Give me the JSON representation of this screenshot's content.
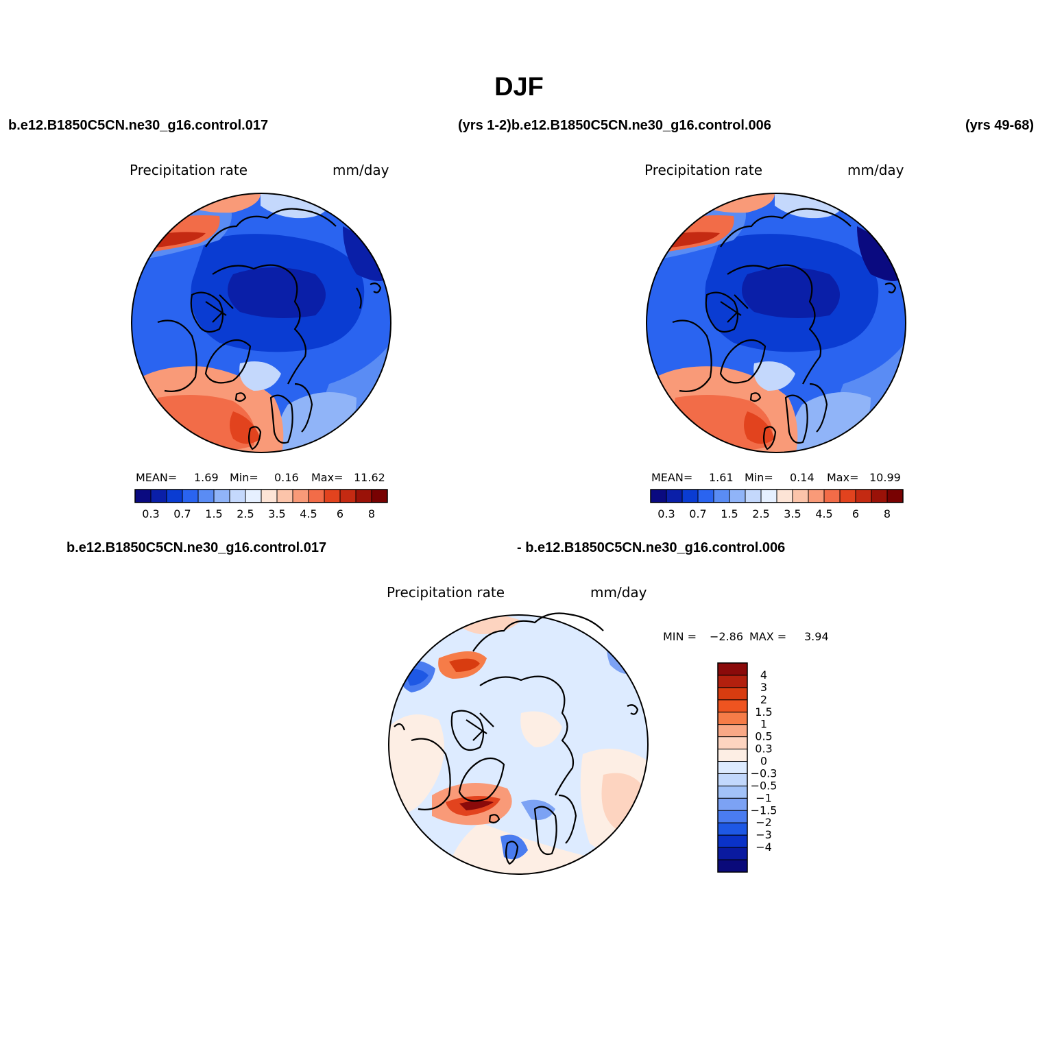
{
  "figure": {
    "title": "DJF",
    "header_top_left": "b.e12.B1850C5CN.ne30_g16.control.017",
    "header_top_mid": "(yrs 1-2)b.e12.B1850C5CN.ne30_g16.control.006",
    "header_top_right": "(yrs 49-68)",
    "header_bottom_left": "b.e12.B1850C5CN.ne30_g16.control.017",
    "header_bottom_mid": "- b.e12.B1850C5CN.ne30_g16.control.006"
  },
  "panels": [
    {
      "id": "case1",
      "variable": "Precipitation  rate",
      "units": "mm/day",
      "stats": {
        "mean_label": "MEAN=",
        "mean": "1.69",
        "min_label": "Min=",
        "min": "0.16",
        "max_label": "Max=",
        "max": "11.62"
      }
    },
    {
      "id": "case2",
      "variable": "Precipitation  rate",
      "units": "mm/day",
      "stats": {
        "mean_label": "MEAN=",
        "mean": "1.61",
        "min_label": "Min=",
        "min": "0.14",
        "max_label": "Max=",
        "max": "10.99"
      }
    },
    {
      "id": "difference",
      "variable": "Precipitation  rate",
      "units": "mm/day",
      "stats": {
        "min_label": "MIN =",
        "min": "−2.86",
        "max_label": "MAX =",
        "max": "3.94"
      }
    }
  ],
  "colorbar_abs": {
    "colors": [
      "#0a0a80",
      "#0a1fa8",
      "#0a3cd2",
      "#2a64f0",
      "#5a8cf4",
      "#90b4f8",
      "#c4d8fc",
      "#e6f0ff",
      "#fde4d6",
      "#fcc4aa",
      "#f99a78",
      "#f26c48",
      "#e2431e",
      "#c42a12",
      "#9a1208",
      "#780202"
    ],
    "tick_labels": [
      "0.3",
      "0.7",
      "1.5",
      "2.5",
      "3.5",
      "4.5",
      "6",
      "8"
    ]
  },
  "colorbar_diff": {
    "colors": [
      "#8a0a0a",
      "#b2200e",
      "#d83c10",
      "#ee5420",
      "#f67c48",
      "#f9a886",
      "#fdd4c0",
      "#fdeee4",
      "#ddebff",
      "#c2d8fc",
      "#a2c2f8",
      "#7ca2f4",
      "#4a7cf0",
      "#1e58e4",
      "#0a32c8",
      "#0a1aa0",
      "#0a0a7a"
    ],
    "tick_labels": [
      "4",
      "3",
      "2",
      "1.5",
      "1",
      "0.5",
      "0.3",
      "0",
      "−0.3",
      "−0.5",
      "−1",
      "−1.5",
      "−2",
      "−3",
      "−4"
    ]
  }
}
